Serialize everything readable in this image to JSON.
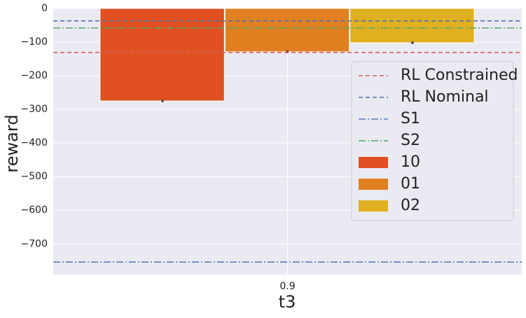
{
  "chart_data": {
    "type": "bar",
    "xlabel": "t3",
    "ylabel": "reward",
    "categories": [
      "0.9"
    ],
    "series": [
      {
        "name": "10",
        "color": "#e05020",
        "values": [
          -275
        ],
        "errors": [
          4
        ]
      },
      {
        "name": "01",
        "color": "#e08020",
        "values": [
          -129
        ],
        "errors": [
          4
        ]
      },
      {
        "name": "02",
        "color": "#e0b020",
        "values": [
          -102
        ],
        "errors": [
          4
        ]
      }
    ],
    "hlines": [
      {
        "name": "RL Constrained",
        "color": "#d65f5f",
        "value": -131,
        "style": "dashed"
      },
      {
        "name": "RL Nominal",
        "color": "#4c72b0",
        "value": -37,
        "style": "dashed"
      },
      {
        "name": "S1",
        "color": "#5a7dbf",
        "value": -754,
        "style": "dashdot"
      },
      {
        "name": "S2",
        "color": "#55a868",
        "value": -58,
        "style": "dashdot"
      }
    ],
    "ylim": [
      -791,
      0
    ],
    "yticks": [
      {
        "value": 0,
        "label": "0"
      },
      {
        "value": -100,
        "label": "−100"
      },
      {
        "value": -200,
        "label": "−200"
      },
      {
        "value": -300,
        "label": "−300"
      },
      {
        "value": -400,
        "label": "−400"
      },
      {
        "value": -500,
        "label": "−500"
      },
      {
        "value": -600,
        "label": "−600"
      },
      {
        "value": -700,
        "label": "−700"
      }
    ],
    "grid": true,
    "legend": "upper right"
  }
}
